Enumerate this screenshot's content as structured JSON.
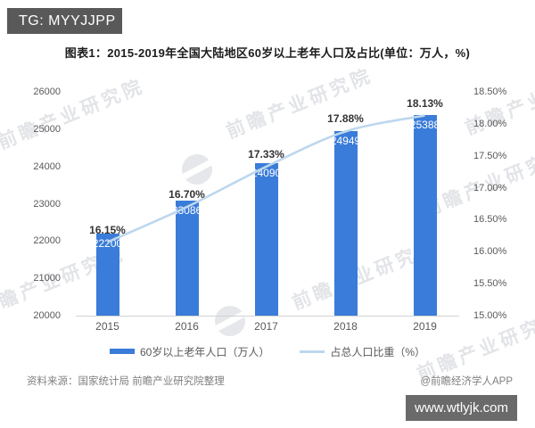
{
  "header": {
    "badge_label": "TG: MYYJJPP"
  },
  "title": "图表1：2015-2019年全国大陆地区60岁以上老年人口及占比(单位：万人，%)",
  "chart_data": {
    "type": "combo",
    "categories": [
      "2015",
      "2016",
      "2017",
      "2018",
      "2019"
    ],
    "series": [
      {
        "name": "60岁以上老年人口（万人）",
        "type": "bar",
        "axis": "left",
        "values": [
          22200,
          23086,
          24090,
          24949,
          25388
        ],
        "value_labels": [
          "22200",
          "23086",
          "24090",
          "24949",
          "25388"
        ],
        "color": "#3a7cd9"
      },
      {
        "name": "占总人口比重（%）",
        "type": "line",
        "axis": "right",
        "values": [
          16.15,
          16.7,
          17.33,
          17.88,
          18.13
        ],
        "value_labels": [
          "16.15%",
          "16.70%",
          "17.33%",
          "17.88%",
          "18.13%"
        ],
        "color": "#bdd7ee"
      }
    ],
    "left_axis": {
      "min": 20000,
      "max": 26000,
      "ticks": [
        "26000",
        "25000",
        "24000",
        "23000",
        "22000",
        "21000",
        "20000"
      ]
    },
    "right_axis": {
      "min": 15.0,
      "max": 18.5,
      "ticks": [
        "18.50%",
        "18.00%",
        "17.50%",
        "17.00%",
        "16.50%",
        "16.00%",
        "15.50%",
        "15.00%"
      ]
    },
    "legend": [
      {
        "label": "60岁以上老年人口（万人）",
        "color": "#3a7cd9"
      },
      {
        "label": "占总人口比重（%）",
        "color": "#bdd7ee"
      }
    ],
    "grid": false,
    "legend_position": "bottom"
  },
  "watermark": {
    "text": "前瞻产业研究院"
  },
  "footer": {
    "source": "资料来源：国家统计局 前瞻产业研究院整理",
    "credit": "@前瞻经济学人APP"
  },
  "site_badge": "www.wtlyjk.com"
}
